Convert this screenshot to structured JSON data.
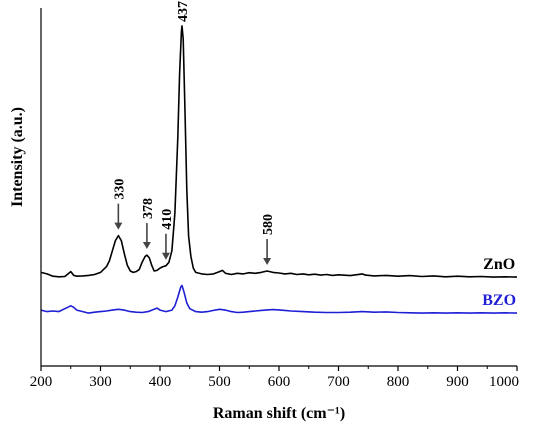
{
  "chart_data": {
    "type": "line",
    "title": "",
    "xlabel": "Raman shift (cm⁻¹)",
    "ylabel": "Intensity (a.u.)",
    "xlim": [
      200,
      1000
    ],
    "x_ticks": [
      200,
      300,
      400,
      500,
      600,
      700,
      800,
      900,
      1000
    ],
    "ylim": [
      0,
      1
    ],
    "y_ticks_visible": false,
    "grid": false,
    "legend": "none",
    "series": [
      {
        "name": "ZnO",
        "color": "#000000",
        "label_x": 970,
        "points": [
          [
            200,
            0.095
          ],
          [
            210,
            0.09
          ],
          [
            220,
            0.082
          ],
          [
            230,
            0.08
          ],
          [
            240,
            0.081
          ],
          [
            250,
            0.098
          ],
          [
            255,
            0.085
          ],
          [
            260,
            0.082
          ],
          [
            270,
            0.083
          ],
          [
            280,
            0.085
          ],
          [
            290,
            0.088
          ],
          [
            300,
            0.095
          ],
          [
            310,
            0.115
          ],
          [
            315,
            0.135
          ],
          [
            320,
            0.17
          ],
          [
            325,
            0.205
          ],
          [
            330,
            0.222
          ],
          [
            335,
            0.205
          ],
          [
            340,
            0.16
          ],
          [
            345,
            0.12
          ],
          [
            350,
            0.1
          ],
          [
            355,
            0.095
          ],
          [
            360,
            0.098
          ],
          [
            365,
            0.105
          ],
          [
            370,
            0.13
          ],
          [
            375,
            0.15
          ],
          [
            378,
            0.155
          ],
          [
            382,
            0.145
          ],
          [
            386,
            0.12
          ],
          [
            390,
            0.1
          ],
          [
            395,
            0.102
          ],
          [
            400,
            0.11
          ],
          [
            405,
            0.115
          ],
          [
            410,
            0.118
          ],
          [
            415,
            0.13
          ],
          [
            420,
            0.17
          ],
          [
            425,
            0.3
          ],
          [
            430,
            0.56
          ],
          [
            433,
            0.78
          ],
          [
            436,
            0.925
          ],
          [
            437,
            0.945
          ],
          [
            439,
            0.9
          ],
          [
            442,
            0.65
          ],
          [
            445,
            0.38
          ],
          [
            448,
            0.22
          ],
          [
            452,
            0.15
          ],
          [
            456,
            0.11
          ],
          [
            460,
            0.095
          ],
          [
            470,
            0.09
          ],
          [
            480,
            0.088
          ],
          [
            490,
            0.09
          ],
          [
            500,
            0.098
          ],
          [
            505,
            0.102
          ],
          [
            510,
            0.092
          ],
          [
            520,
            0.088
          ],
          [
            530,
            0.092
          ],
          [
            540,
            0.09
          ],
          [
            550,
            0.094
          ],
          [
            560,
            0.092
          ],
          [
            570,
            0.095
          ],
          [
            580,
            0.1
          ],
          [
            590,
            0.095
          ],
          [
            600,
            0.093
          ],
          [
            610,
            0.09
          ],
          [
            620,
            0.092
          ],
          [
            630,
            0.088
          ],
          [
            640,
            0.09
          ],
          [
            650,
            0.087
          ],
          [
            660,
            0.089
          ],
          [
            670,
            0.086
          ],
          [
            680,
            0.088
          ],
          [
            690,
            0.085
          ],
          [
            700,
            0.087
          ],
          [
            720,
            0.084
          ],
          [
            740,
            0.09
          ],
          [
            745,
            0.086
          ],
          [
            760,
            0.083
          ],
          [
            780,
            0.085
          ],
          [
            800,
            0.082
          ],
          [
            820,
            0.084
          ],
          [
            840,
            0.081
          ],
          [
            860,
            0.083
          ],
          [
            880,
            0.08
          ],
          [
            900,
            0.082
          ],
          [
            920,
            0.08
          ],
          [
            940,
            0.081
          ],
          [
            960,
            0.079
          ],
          [
            980,
            0.08
          ],
          [
            1000,
            0.079
          ]
        ]
      },
      {
        "name": "BZO",
        "color": "#1f1fd6",
        "label_x": 970,
        "points": [
          [
            200,
            -0.035
          ],
          [
            210,
            -0.04
          ],
          [
            220,
            -0.038
          ],
          [
            230,
            -0.04
          ],
          [
            240,
            -0.03
          ],
          [
            250,
            -0.02
          ],
          [
            255,
            -0.025
          ],
          [
            260,
            -0.035
          ],
          [
            270,
            -0.04
          ],
          [
            280,
            -0.045
          ],
          [
            290,
            -0.042
          ],
          [
            300,
            -0.04
          ],
          [
            310,
            -0.038
          ],
          [
            320,
            -0.035
          ],
          [
            330,
            -0.032
          ],
          [
            340,
            -0.035
          ],
          [
            350,
            -0.04
          ],
          [
            360,
            -0.042
          ],
          [
            370,
            -0.043
          ],
          [
            380,
            -0.04
          ],
          [
            390,
            -0.032
          ],
          [
            395,
            -0.028
          ],
          [
            400,
            -0.035
          ],
          [
            410,
            -0.04
          ],
          [
            420,
            -0.035
          ],
          [
            425,
            -0.02
          ],
          [
            430,
            0.01
          ],
          [
            435,
            0.045
          ],
          [
            437,
            0.05
          ],
          [
            440,
            0.03
          ],
          [
            445,
            -0.01
          ],
          [
            450,
            -0.03
          ],
          [
            460,
            -0.04
          ],
          [
            470,
            -0.042
          ],
          [
            480,
            -0.04
          ],
          [
            490,
            -0.036
          ],
          [
            500,
            -0.032
          ],
          [
            510,
            -0.035
          ],
          [
            520,
            -0.04
          ],
          [
            530,
            -0.043
          ],
          [
            540,
            -0.042
          ],
          [
            550,
            -0.04
          ],
          [
            560,
            -0.038
          ],
          [
            570,
            -0.036
          ],
          [
            580,
            -0.034
          ],
          [
            590,
            -0.033
          ],
          [
            600,
            -0.034
          ],
          [
            610,
            -0.036
          ],
          [
            620,
            -0.038
          ],
          [
            640,
            -0.04
          ],
          [
            660,
            -0.042
          ],
          [
            680,
            -0.043
          ],
          [
            700,
            -0.043
          ],
          [
            720,
            -0.042
          ],
          [
            740,
            -0.04
          ],
          [
            760,
            -0.042
          ],
          [
            780,
            -0.041
          ],
          [
            800,
            -0.043
          ],
          [
            820,
            -0.044
          ],
          [
            840,
            -0.045
          ],
          [
            860,
            -0.044
          ],
          [
            880,
            -0.045
          ],
          [
            900,
            -0.044
          ],
          [
            920,
            -0.045
          ],
          [
            940,
            -0.044
          ],
          [
            960,
            -0.045
          ],
          [
            980,
            -0.044
          ],
          [
            1000,
            -0.045
          ]
        ]
      }
    ],
    "annotations": [
      {
        "label": "330",
        "x": 330,
        "arrow": true
      },
      {
        "label": "378",
        "x": 378,
        "arrow": true
      },
      {
        "label": "410",
        "x": 410,
        "arrow": true
      },
      {
        "label": "580",
        "x": 580,
        "arrow": true
      },
      {
        "label": "437",
        "x": 437,
        "arrow": false
      }
    ]
  }
}
